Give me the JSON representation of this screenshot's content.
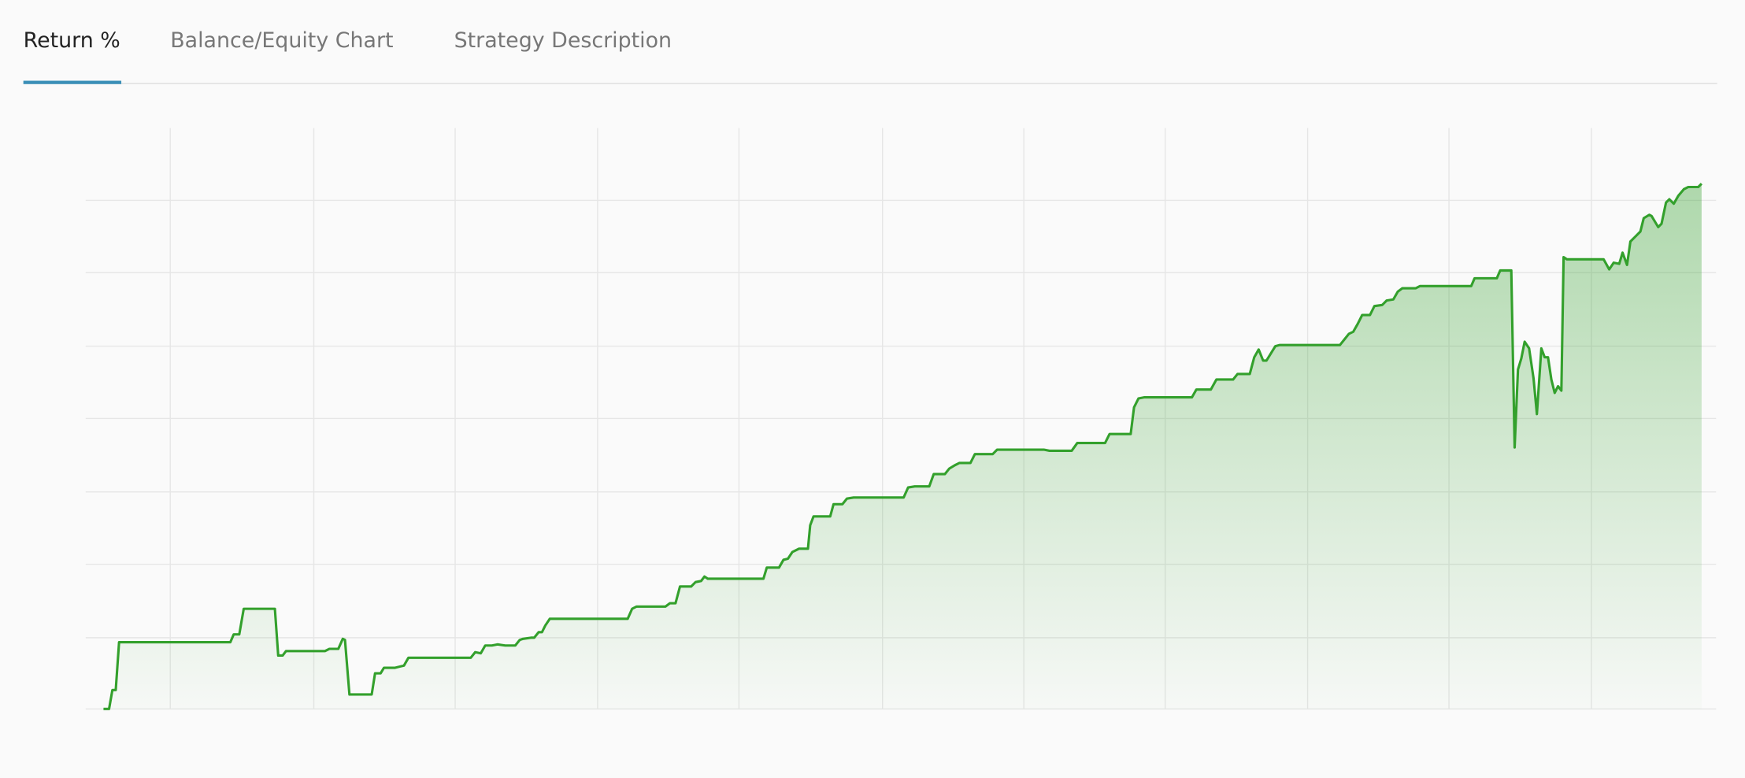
{
  "tabs": [
    "Return %",
    "Balance/Equity Chart",
    "Strategy Description"
  ],
  "chart_data": {
    "type": "line",
    "x": [
      93,
      98,
      101,
      104,
      107,
      207,
      210,
      215,
      219,
      247,
      250,
      254,
      257,
      292,
      296,
      304,
      308,
      310,
      314,
      334,
      337,
      342,
      345,
      355,
      363,
      367,
      423,
      427,
      432,
      436,
      442,
      447,
      454,
      463,
      467,
      470,
      477,
      480,
      484,
      487,
      490,
      494,
      564,
      568,
      572,
      598,
      602,
      607,
      611,
      621,
      625,
      630,
      633,
      636,
      686,
      689,
      700,
      704,
      708,
      712,
      718,
      726,
      728,
      731,
      746,
      749,
      757,
      761,
      767,
      812,
      816,
      822,
      835,
      839,
      849,
      853,
      858,
      862,
      872,
      876,
      892,
      896,
      938,
      943,
      963,
      968,
      993,
      997,
      1016,
      1019,
      1023,
      1028,
      1071,
      1075,
      1088,
      1093,
      1108,
      1112,
      1123,
      1127,
      1131,
      1135,
      1138,
      1146,
      1150,
      1204,
      1208,
      1212,
      1216,
      1220,
      1224,
      1231,
      1235,
      1242,
      1246,
      1252,
      1256,
      1260,
      1272,
      1276,
      1322,
      1325,
      1345,
      1348,
      1358,
      1361,
      1364,
      1367,
      1370,
      1374,
      1378,
      1381,
      1385,
      1388,
      1391,
      1394,
      1397,
      1400,
      1403,
      1405,
      1408,
      1441,
      1446,
      1450,
      1455,
      1458,
      1462,
      1465,
      1470,
      1474,
      1477,
      1482,
      1484,
      1490,
      1493,
      1497,
      1500,
      1504,
      1508,
      1513,
      1517,
      1526,
      1529
    ],
    "series": [
      {
        "color": "#33a02c",
        "values": [
          0,
          0,
          17,
          17,
          60,
          60,
          67,
          67,
          90,
          90,
          48,
          48,
          52,
          52,
          54,
          54,
          63,
          62,
          13,
          13,
          32,
          32,
          37,
          37,
          39,
          46,
          46,
          51,
          50,
          57,
          57,
          58,
          57,
          57,
          62,
          63,
          64,
          64,
          69,
          69,
          75,
          81,
          81,
          90,
          92,
          92,
          95,
          95,
          110,
          110,
          114,
          115,
          119,
          117,
          117,
          127,
          127,
          134,
          135,
          141,
          144,
          144,
          165,
          173,
          173,
          184,
          184,
          189,
          190,
          190,
          199,
          200,
          200,
          211,
          211,
          216,
          219,
          221,
          221,
          229,
          229,
          233,
          233,
          232,
          232,
          239,
          239,
          247,
          247,
          271,
          279,
          280,
          280,
          287,
          287,
          296,
          296,
          301,
          301,
          316,
          323,
          313,
          313,
          326,
          327,
          327,
          332,
          337,
          339,
          346,
          354,
          354,
          362,
          363,
          367,
          368,
          375,
          378,
          378,
          380,
          380,
          387,
          387,
          394,
          394,
          235,
          305,
          315,
          330,
          324,
          297,
          265,
          324,
          316,
          316,
          296,
          284,
          290,
          286,
          406,
          404,
          404,
          395,
          401,
          400,
          410,
          399,
          420,
          425,
          429,
          441,
          444,
          443,
          433,
          436,
          455,
          458,
          454,
          461,
          467,
          469,
          469,
          472
        ]
      }
    ],
    "xlim": [
      77,
      1542
    ],
    "xticks": [
      153,
      282,
      409,
      537,
      664,
      793,
      920,
      1047,
      1175,
      1302,
      1430
    ],
    "ylim": [
      0,
      522
    ],
    "yticks": [
      64,
      130,
      195,
      261,
      326,
      392,
      457
    ],
    "grid": true
  }
}
